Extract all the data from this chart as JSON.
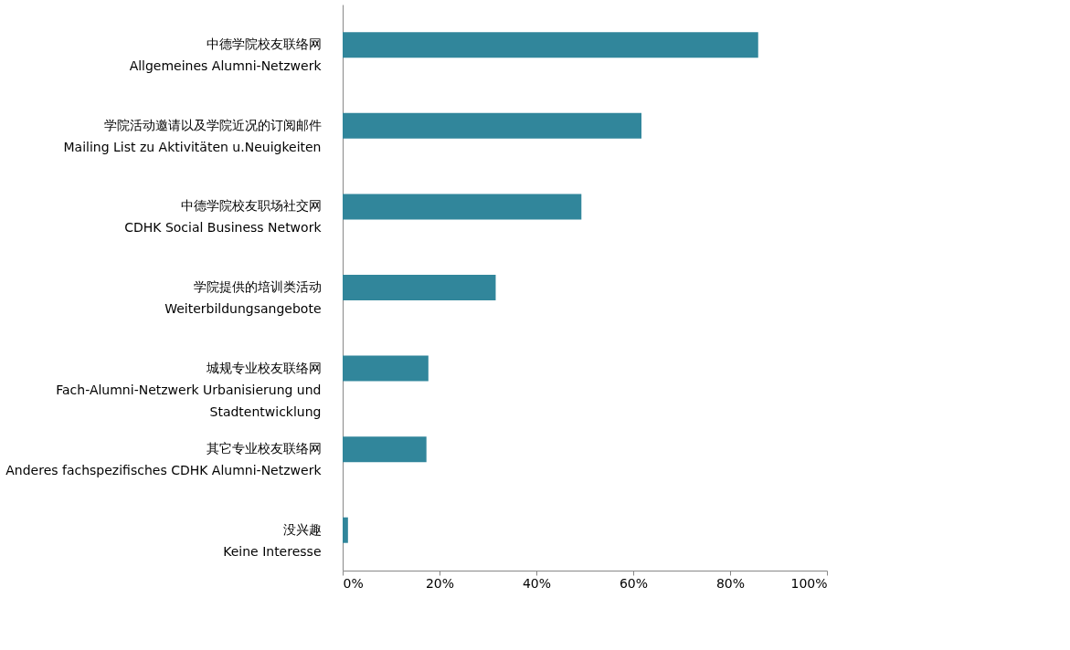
{
  "chart_data": {
    "type": "bar",
    "orientation": "horizontal",
    "categories": [
      "中德学院校友联络网\nAllgemeines Alumni-Netzwerk",
      "学院活动邀请以及学院近况的订阅邮件\nMailing List zu Aktivitäten u.Neuigkeiten",
      "中德学院校友职场社交网\nCDHK Social Business Network",
      "学院提供的培训类活动\nWeiterbildungsangebote",
      "城规专业校友联络网\nFach-Alumni-Netzwerk Urbanisierung und\nStadtentwicklung",
      "其它专业校友联络网\nAnderes fachspezifisches CDHK Alumni-Netzwerk",
      "没兴趣\nKeine Interesse"
    ],
    "values": [
      85.8,
      61.7,
      49.3,
      31.6,
      17.7,
      17.3,
      1.1
    ],
    "color": "#31869b",
    "xlim": [
      0,
      100
    ],
    "xticks": [
      {
        "value": 0,
        "label": "0%"
      },
      {
        "value": 20,
        "label": "20%"
      },
      {
        "value": 40,
        "label": "40%"
      },
      {
        "value": 60,
        "label": "60%"
      },
      {
        "value": 80,
        "label": "80%"
      },
      {
        "value": 100,
        "label": "100%"
      }
    ],
    "grid": false
  }
}
